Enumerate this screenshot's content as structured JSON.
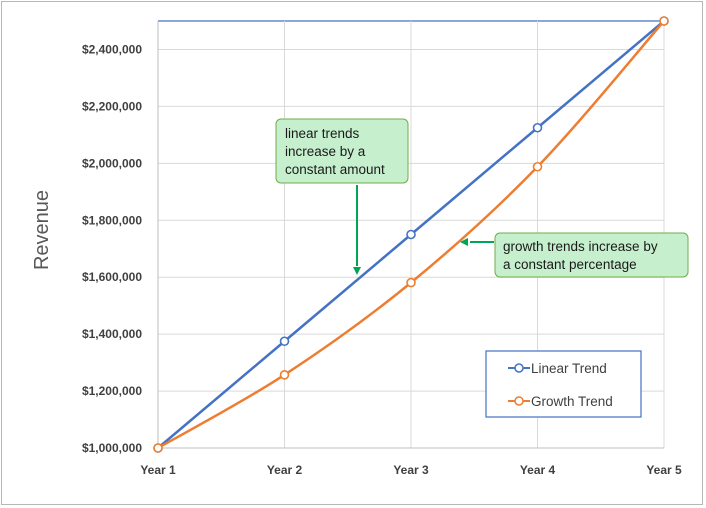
{
  "chart_data": {
    "type": "line",
    "categories": [
      "Year 1",
      "Year 2",
      "Year 3",
      "Year 4",
      "Year 5"
    ],
    "series": [
      {
        "name": "Linear Trend",
        "values": [
          1000000,
          1375000,
          1750000,
          2125000,
          2500000
        ],
        "color": "#4472c4"
      },
      {
        "name": "Growth Trend",
        "values": [
          1000000,
          1257000,
          1581000,
          1988000,
          2500000
        ],
        "color": "#ed7d31"
      }
    ],
    "title": "",
    "xlabel": "",
    "ylabel": "Revenue",
    "ylim": [
      1000000,
      2500000
    ],
    "yticks": [
      "$1,000,000",
      "$1,200,000",
      "$1,400,000",
      "$1,600,000",
      "$1,800,000",
      "$2,000,000",
      "$2,200,000",
      "$2,400,000"
    ],
    "ytick_values": [
      1000000,
      1200000,
      1400000,
      1600000,
      1800000,
      2000000,
      2200000,
      2400000
    ],
    "grid": true,
    "legend_position": "bottom-right",
    "annotations": [
      {
        "lines": [
          "linear trends",
          "increase by a",
          "constant amount"
        ],
        "color": "#c6efce"
      },
      {
        "lines": [
          "growth trends increase by",
          "a constant percentage"
        ],
        "color": "#c6efce"
      }
    ],
    "arrow_color": "#00a651"
  }
}
